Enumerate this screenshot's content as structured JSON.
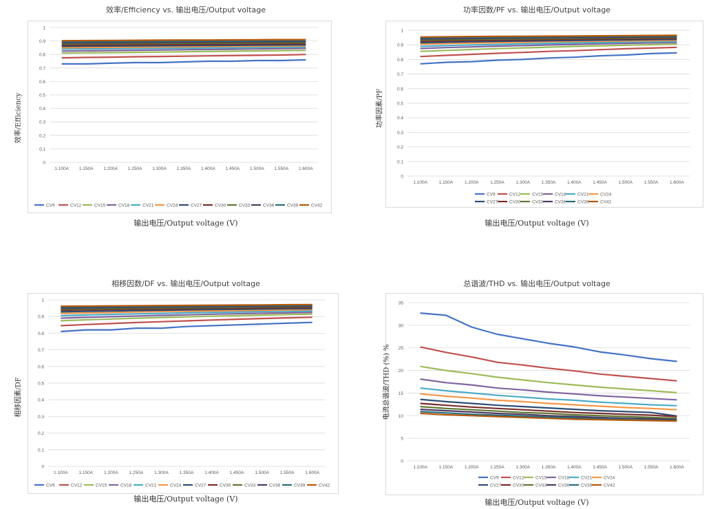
{
  "chart_data": [
    {
      "type": "line",
      "title": "效率/Efficiency vs. 输出电压/Output voltage",
      "xlabel": "输出电压/Output voltage (V)",
      "ylabel": "效率/Efficiency",
      "ylim": [
        0,
        1
      ],
      "ytick_labels": [
        "0",
        "0.1",
        "0.2",
        "0.3",
        "0.4",
        "0.5",
        "0.6",
        "0.7",
        "0.8",
        "0.9",
        "1"
      ],
      "categories": [
        "1.100A",
        "1.150A",
        "1.200A",
        "1.250A",
        "1.300A",
        "1.350A",
        "1.400A",
        "1.450A",
        "1.500A",
        "1.550A",
        "1.600A"
      ],
      "legend": "bottom",
      "series": [
        {
          "name": "CV9",
          "color": "#4472c4",
          "values": [
            0.73,
            0.73,
            0.735,
            0.74,
            0.74,
            0.745,
            0.75,
            0.75,
            0.755,
            0.755,
            0.76
          ]
        },
        {
          "name": "CV12",
          "color": "#c0504d",
          "values": [
            0.775,
            0.778,
            0.78,
            0.783,
            0.785,
            0.787,
            0.79,
            0.792,
            0.794,
            0.796,
            0.8
          ]
        },
        {
          "name": "CV15",
          "color": "#9bbb59",
          "values": [
            0.81,
            0.812,
            0.814,
            0.816,
            0.818,
            0.82,
            0.822,
            0.824,
            0.826,
            0.828,
            0.83
          ]
        },
        {
          "name": "CV18",
          "color": "#8064a2",
          "values": [
            0.825,
            0.827,
            0.829,
            0.831,
            0.833,
            0.835,
            0.837,
            0.839,
            0.841,
            0.843,
            0.845
          ]
        },
        {
          "name": "CV21",
          "color": "#4bacc6",
          "values": [
            0.84,
            0.842,
            0.843,
            0.845,
            0.846,
            0.847,
            0.849,
            0.85,
            0.852,
            0.853,
            0.855
          ]
        },
        {
          "name": "CV24",
          "color": "#f79646",
          "values": [
            0.85,
            0.852,
            0.853,
            0.855,
            0.856,
            0.857,
            0.859,
            0.86,
            0.861,
            0.862,
            0.864
          ]
        },
        {
          "name": "CV27",
          "color": "#2c4d75",
          "values": [
            0.86,
            0.862,
            0.863,
            0.864,
            0.865,
            0.866,
            0.867,
            0.868,
            0.869,
            0.87,
            0.871
          ]
        },
        {
          "name": "CV30",
          "color": "#772c2a",
          "values": [
            0.87,
            0.871,
            0.872,
            0.873,
            0.874,
            0.875,
            0.876,
            0.877,
            0.878,
            0.879,
            0.88
          ]
        },
        {
          "name": "CV33",
          "color": "#5f7530",
          "values": [
            0.878,
            0.879,
            0.88,
            0.881,
            0.882,
            0.883,
            0.884,
            0.885,
            0.886,
            0.887,
            0.888
          ]
        },
        {
          "name": "CV36",
          "color": "#4d3b62",
          "values": [
            0.886,
            0.887,
            0.888,
            0.889,
            0.89,
            0.891,
            0.892,
            0.893,
            0.894,
            0.895,
            0.896
          ]
        },
        {
          "name": "CV39",
          "color": "#276a7c",
          "values": [
            0.894,
            0.895,
            0.896,
            0.897,
            0.898,
            0.899,
            0.9,
            0.9,
            0.901,
            0.902,
            0.903
          ]
        },
        {
          "name": "CV42",
          "color": "#b65708",
          "values": [
            0.902,
            0.903,
            0.904,
            0.905,
            0.906,
            0.907,
            0.907,
            0.908,
            0.909,
            0.91,
            0.91
          ]
        }
      ]
    },
    {
      "type": "line",
      "title": "功率因数/PF vs. 输出电压/Output voltage",
      "xlabel": "输出电压/Output voltage (V)",
      "ylabel": "功率因素/PF",
      "ylim": [
        0,
        1
      ],
      "ytick_labels": [
        "0",
        "0.1",
        "0.2",
        "0.3",
        "0.4",
        "0.5",
        "0.6",
        "0.7",
        "0.8",
        "0.9",
        "1"
      ],
      "categories": [
        "1.100A",
        "1.150A",
        "1.200A",
        "1.250A",
        "1.300A",
        "1.350A",
        "1.400A",
        "1.450A",
        "1.500A",
        "1.550A",
        "1.600A"
      ],
      "legend": "bottom",
      "series": [
        {
          "name": "CV9",
          "color": "#4472c4",
          "values": [
            0.77,
            0.78,
            0.785,
            0.795,
            0.8,
            0.81,
            0.815,
            0.825,
            0.83,
            0.84,
            0.845
          ]
        },
        {
          "name": "CV12",
          "color": "#c0504d",
          "values": [
            0.82,
            0.828,
            0.835,
            0.842,
            0.848,
            0.855,
            0.86,
            0.867,
            0.873,
            0.878,
            0.883
          ]
        },
        {
          "name": "CV15",
          "color": "#9bbb59",
          "values": [
            0.855,
            0.862,
            0.868,
            0.874,
            0.879,
            0.884,
            0.889,
            0.893,
            0.897,
            0.901,
            0.905
          ]
        },
        {
          "name": "CV18",
          "color": "#8064a2",
          "values": [
            0.875,
            0.881,
            0.886,
            0.891,
            0.895,
            0.899,
            0.903,
            0.907,
            0.91,
            0.913,
            0.916
          ]
        },
        {
          "name": "CV21",
          "color": "#4bacc6",
          "values": [
            0.89,
            0.895,
            0.899,
            0.903,
            0.907,
            0.91,
            0.913,
            0.916,
            0.919,
            0.921,
            0.923
          ]
        },
        {
          "name": "CV24",
          "color": "#f79646",
          "values": [
            0.905,
            0.909,
            0.912,
            0.915,
            0.918,
            0.921,
            0.923,
            0.925,
            0.927,
            0.929,
            0.931
          ]
        },
        {
          "name": "CV27",
          "color": "#2c4d75",
          "values": [
            0.915,
            0.918,
            0.921,
            0.924,
            0.926,
            0.928,
            0.93,
            0.932,
            0.934,
            0.936,
            0.937
          ]
        },
        {
          "name": "CV30",
          "color": "#772c2a",
          "values": [
            0.925,
            0.928,
            0.93,
            0.932,
            0.934,
            0.936,
            0.938,
            0.94,
            0.941,
            0.943,
            0.944
          ]
        },
        {
          "name": "CV33",
          "color": "#5f7530",
          "values": [
            0.933,
            0.935,
            0.937,
            0.939,
            0.941,
            0.943,
            0.944,
            0.946,
            0.947,
            0.949,
            0.95
          ]
        },
        {
          "name": "CV36",
          "color": "#4d3b62",
          "values": [
            0.94,
            0.942,
            0.944,
            0.946,
            0.947,
            0.949,
            0.95,
            0.951,
            0.953,
            0.954,
            0.955
          ]
        },
        {
          "name": "CV39",
          "color": "#276a7c",
          "values": [
            0.947,
            0.949,
            0.95,
            0.952,
            0.953,
            0.954,
            0.956,
            0.957,
            0.958,
            0.959,
            0.96
          ]
        },
        {
          "name": "CV42",
          "color": "#b65708",
          "values": [
            0.954,
            0.955,
            0.957,
            0.958,
            0.959,
            0.96,
            0.961,
            0.962,
            0.963,
            0.964,
            0.965
          ]
        }
      ]
    },
    {
      "type": "line",
      "title": "相移因数/DF vs. 输出电压/Output voltage",
      "xlabel": "输出电压/Output voltage (V)",
      "ylabel": "相移因素/DF",
      "ylim": [
        0,
        1
      ],
      "ytick_labels": [
        "0",
        "0.1",
        "0.2",
        "0.3",
        "0.4",
        "0.5",
        "0.6",
        "0.7",
        "0.8",
        "0.9",
        "1"
      ],
      "categories": [
        "1.100A",
        "1.150A",
        "1.200A",
        "1.250A",
        "1.300A",
        "1.350A",
        "1.400A",
        "1.450A",
        "1.500A",
        "1.550A",
        "1.600A"
      ],
      "legend": "bottom",
      "series": [
        {
          "name": "CV9",
          "color": "#4472c4",
          "values": [
            0.81,
            0.82,
            0.82,
            0.83,
            0.83,
            0.84,
            0.845,
            0.85,
            0.855,
            0.86,
            0.865
          ]
        },
        {
          "name": "CV12",
          "color": "#c0504d",
          "values": [
            0.845,
            0.852,
            0.858,
            0.864,
            0.869,
            0.874,
            0.879,
            0.884,
            0.888,
            0.892,
            0.896
          ]
        },
        {
          "name": "CV15",
          "color": "#9bbb59",
          "values": [
            0.875,
            0.88,
            0.885,
            0.89,
            0.894,
            0.898,
            0.902,
            0.905,
            0.909,
            0.912,
            0.915
          ]
        },
        {
          "name": "CV18",
          "color": "#8064a2",
          "values": [
            0.89,
            0.895,
            0.899,
            0.903,
            0.907,
            0.91,
            0.914,
            0.917,
            0.92,
            0.922,
            0.925
          ]
        },
        {
          "name": "CV21",
          "color": "#4bacc6",
          "values": [
            0.905,
            0.909,
            0.913,
            0.916,
            0.919,
            0.922,
            0.925,
            0.927,
            0.93,
            0.932,
            0.934
          ]
        },
        {
          "name": "CV24",
          "color": "#f79646",
          "values": [
            0.918,
            0.921,
            0.924,
            0.927,
            0.93,
            0.932,
            0.934,
            0.936,
            0.938,
            0.94,
            0.942
          ]
        },
        {
          "name": "CV27",
          "color": "#2c4d75",
          "values": [
            0.928,
            0.931,
            0.933,
            0.936,
            0.938,
            0.94,
            0.942,
            0.944,
            0.945,
            0.947,
            0.948
          ]
        },
        {
          "name": "CV30",
          "color": "#772c2a",
          "values": [
            0.937,
            0.94,
            0.942,
            0.944,
            0.945,
            0.947,
            0.949,
            0.95,
            0.952,
            0.953,
            0.954
          ]
        },
        {
          "name": "CV33",
          "color": "#5f7530",
          "values": [
            0.944,
            0.946,
            0.948,
            0.95,
            0.951,
            0.953,
            0.954,
            0.955,
            0.957,
            0.958,
            0.959
          ]
        },
        {
          "name": "CV36",
          "color": "#4d3b62",
          "values": [
            0.95,
            0.952,
            0.954,
            0.955,
            0.957,
            0.958,
            0.959,
            0.96,
            0.961,
            0.962,
            0.963
          ]
        },
        {
          "name": "CV39",
          "color": "#276a7c",
          "values": [
            0.956,
            0.958,
            0.959,
            0.96,
            0.962,
            0.963,
            0.964,
            0.965,
            0.966,
            0.967,
            0.968
          ]
        },
        {
          "name": "CV42",
          "color": "#b65708",
          "values": [
            0.962,
            0.963,
            0.964,
            0.965,
            0.966,
            0.967,
            0.968,
            0.969,
            0.97,
            0.971,
            0.972
          ]
        }
      ]
    },
    {
      "type": "line",
      "title": "总谐波/THD vs. 输出电压/Output voltage",
      "xlabel": "输出电压/Output voltage (V)",
      "ylabel": "电流总谐波/THD (%) %",
      "ylim": [
        0,
        35
      ],
      "ytick_labels": [
        "0",
        "5",
        "10",
        "15",
        "20",
        "25",
        "30",
        "35"
      ],
      "categories": [
        "1.100A",
        "1.150A",
        "1.200A",
        "1.250A",
        "1.300A",
        "1.350A",
        "1.400A",
        "1.450A",
        "1.500A",
        "1.550A",
        "1.600A"
      ],
      "legend": "bottom",
      "series": [
        {
          "name": "CV9",
          "color": "#4472c4",
          "values": [
            32.7,
            32.2,
            29.6,
            28.0,
            27.0,
            26.0,
            25.2,
            24.1,
            23.4,
            22.6,
            22.0
          ]
        },
        {
          "name": "CV12",
          "color": "#c0504d",
          "values": [
            25.2,
            24.0,
            23.0,
            21.8,
            21.2,
            20.5,
            19.9,
            19.2,
            18.7,
            18.2,
            17.7
          ]
        },
        {
          "name": "CV15",
          "color": "#9bbb59",
          "values": [
            20.9,
            20.0,
            19.3,
            18.5,
            17.9,
            17.3,
            16.8,
            16.3,
            15.9,
            15.5,
            15.1
          ]
        },
        {
          "name": "CV18",
          "color": "#8064a2",
          "values": [
            18.1,
            17.3,
            16.8,
            16.1,
            15.7,
            15.2,
            14.8,
            14.4,
            14.1,
            13.8,
            13.5
          ]
        },
        {
          "name": "CV21",
          "color": "#4bacc6",
          "values": [
            16.1,
            15.5,
            15.0,
            14.5,
            14.1,
            13.7,
            13.4,
            13.0,
            12.7,
            12.4,
            12.2
          ]
        },
        {
          "name": "CV24",
          "color": "#f79646",
          "values": [
            14.8,
            14.3,
            13.9,
            13.4,
            13.1,
            12.7,
            12.4,
            12.1,
            11.8,
            11.6,
            11.3
          ]
        },
        {
          "name": "CV27",
          "color": "#2c4d75",
          "values": [
            13.6,
            13.1,
            12.7,
            12.3,
            12.0,
            11.7,
            11.4,
            11.1,
            10.9,
            10.7,
            9.9
          ]
        },
        {
          "name": "CV30",
          "color": "#772c2a",
          "values": [
            12.7,
            12.3,
            11.9,
            11.6,
            11.3,
            11.0,
            10.7,
            10.5,
            10.3,
            10.1,
            9.8
          ]
        },
        {
          "name": "CV33",
          "color": "#5f7530",
          "values": [
            12.0,
            11.6,
            11.3,
            11.0,
            10.7,
            10.5,
            10.2,
            10.0,
            9.8,
            9.6,
            9.4
          ]
        },
        {
          "name": "CV36",
          "color": "#4d3b62",
          "values": [
            11.4,
            11.1,
            10.8,
            10.5,
            10.3,
            10.0,
            9.8,
            9.6,
            9.4,
            9.3,
            9.1
          ]
        },
        {
          "name": "CV39",
          "color": "#276a7c",
          "values": [
            10.9,
            10.6,
            10.3,
            10.1,
            9.9,
            9.7,
            9.5,
            9.3,
            9.2,
            9.0,
            8.9
          ]
        },
        {
          "name": "CV42",
          "color": "#b65708",
          "values": [
            10.5,
            10.2,
            10.0,
            9.8,
            9.6,
            9.4,
            9.2,
            9.1,
            9.0,
            8.9,
            8.8
          ]
        }
      ]
    }
  ]
}
